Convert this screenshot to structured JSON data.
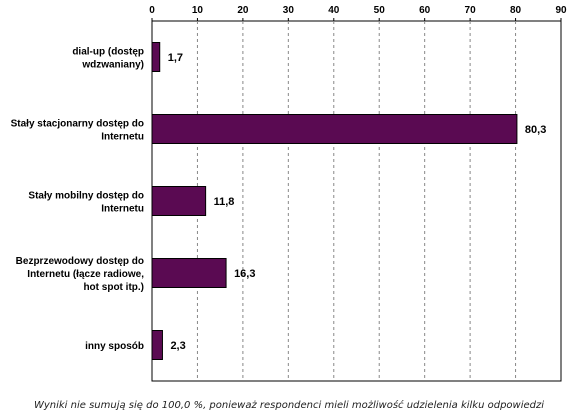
{
  "chart_data": {
    "type": "bar",
    "orientation": "horizontal",
    "categories": [
      [
        "dial-up (dostęp",
        "wdzwaniany)"
      ],
      [
        "Stały stacjonarny dostęp do",
        "Internetu"
      ],
      [
        "Stały mobilny dostęp do",
        "Internetu"
      ],
      [
        "Bezprzewodowy dostęp do",
        "Internetu (łącze radiowe,",
        "hot spot itp.)"
      ],
      [
        "inny sposób"
      ]
    ],
    "values": [
      1.7,
      80.3,
      11.8,
      16.3,
      2.3
    ],
    "value_labels": [
      "1,7",
      "80,3",
      "11,8",
      "16,3",
      "2,3"
    ],
    "xlim": [
      0,
      90
    ],
    "ticks": [
      0,
      10,
      20,
      30,
      40,
      50,
      60,
      70,
      80,
      90
    ],
    "axis_position": "top",
    "grid": "vertical dashed",
    "bar_color": "#5a0a52",
    "title": "",
    "xlabel": "",
    "ylabel": ""
  },
  "footnote": "Wyniki nie sumują się do 100,0 %, ponieważ respondenci mieli możliwość udzielenia kilku odpowiedzi"
}
